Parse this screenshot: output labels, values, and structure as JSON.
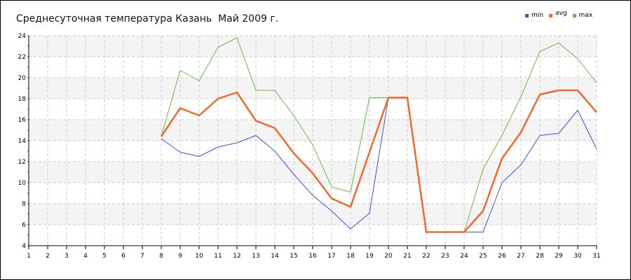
{
  "chart_data": {
    "type": "line",
    "title": "Среднесуточная температура Казань  Май 2009 г.",
    "xlabel": "",
    "ylabel": "",
    "x": [
      1,
      2,
      3,
      4,
      5,
      6,
      7,
      8,
      9,
      10,
      11,
      12,
      13,
      14,
      15,
      16,
      17,
      18,
      19,
      20,
      21,
      22,
      23,
      24,
      25,
      26,
      27,
      28,
      29,
      30,
      31
    ],
    "xlim": [
      1,
      31
    ],
    "ylim": [
      4,
      24
    ],
    "yticks": [
      4,
      6,
      8,
      10,
      12,
      14,
      16,
      18,
      20,
      22,
      24
    ],
    "grid": true,
    "legend_position": "top-right",
    "series": [
      {
        "name": "min",
        "color": "#3355dd",
        "values": [
          null,
          null,
          null,
          null,
          null,
          null,
          null,
          14.2,
          12.9,
          12.5,
          13.4,
          13.8,
          14.5,
          13.0,
          10.8,
          8.8,
          7.3,
          5.6,
          7.1,
          18.1,
          18.1,
          5.3,
          5.3,
          5.3,
          5.3,
          10.0,
          11.7,
          14.5,
          14.7,
          16.9,
          13.2
        ]
      },
      {
        "name": "avg",
        "color": "#ee6a2c",
        "values": [
          null,
          null,
          null,
          null,
          null,
          null,
          null,
          14.4,
          17.1,
          16.4,
          18.0,
          18.6,
          15.9,
          15.2,
          12.8,
          10.9,
          8.5,
          7.7,
          12.9,
          18.1,
          18.1,
          5.3,
          5.3,
          5.3,
          7.3,
          12.3,
          14.8,
          18.4,
          18.8,
          18.8,
          16.7
        ]
      },
      {
        "name": "max",
        "color": "#66bb44",
        "values": [
          null,
          null,
          null,
          null,
          null,
          null,
          null,
          14.4,
          20.7,
          19.7,
          22.9,
          23.8,
          18.8,
          18.8,
          16.4,
          13.6,
          9.6,
          9.1,
          18.1,
          18.1,
          18.1,
          5.3,
          5.3,
          5.3,
          11.3,
          14.5,
          18.2,
          22.5,
          23.3,
          21.8,
          19.5
        ]
      }
    ]
  }
}
